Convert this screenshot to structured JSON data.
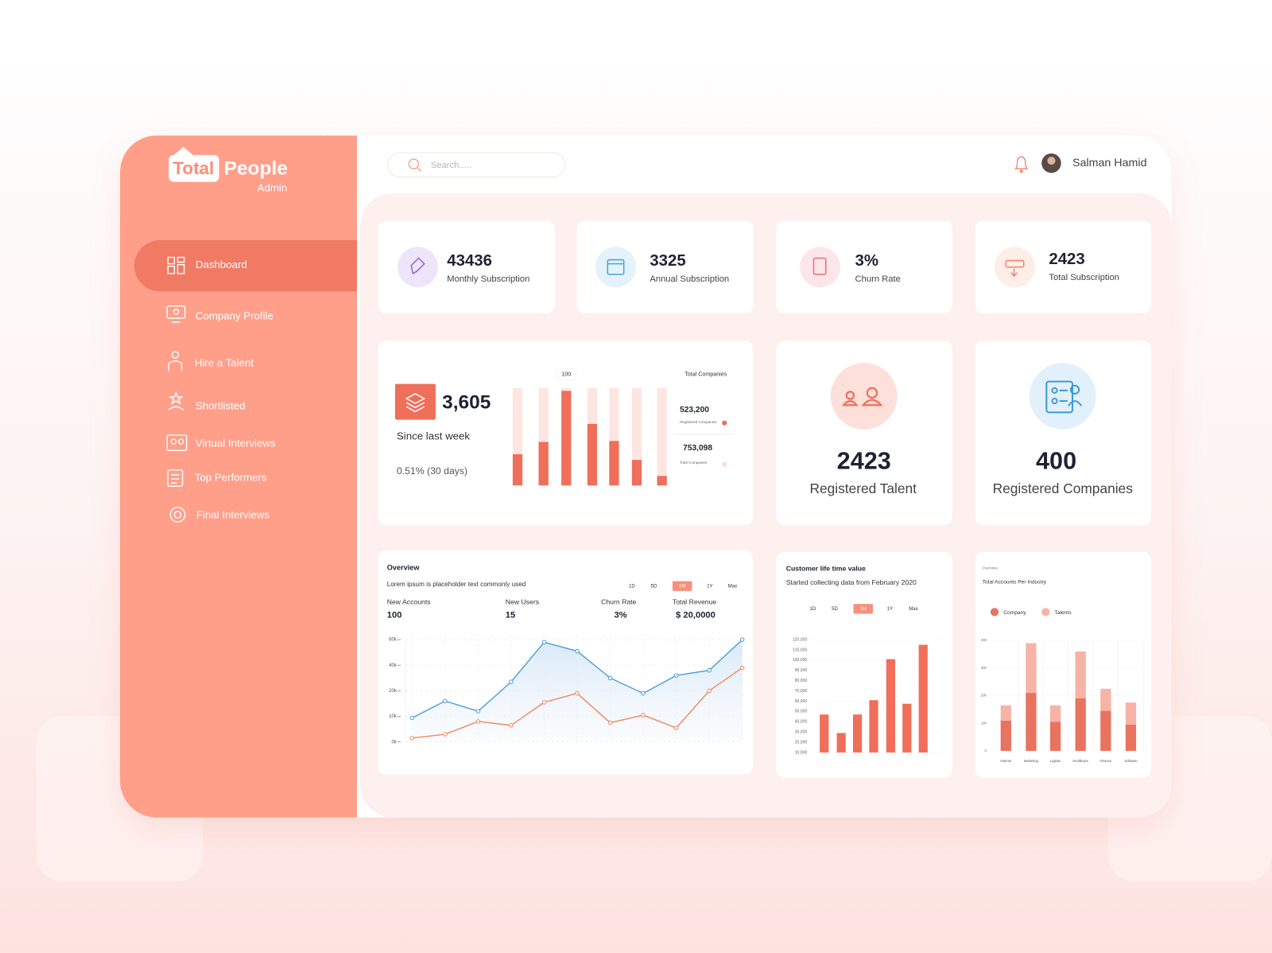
{
  "sidebar": {
    "brand": {
      "word1": "Total",
      "word2": "People",
      "tagline": "Admin"
    },
    "nav": [
      "Dashboard",
      "Company Profile",
      "Hire a Talent",
      "Shortlisted",
      "Virtual Interviews",
      "Top Performers",
      "Final Interviews"
    ]
  },
  "header": {
    "search_placeholder": "Search.....",
    "user_name": "Salman Hamid"
  },
  "stats": [
    {
      "value": "43436",
      "label": "Monthly Subscription"
    },
    {
      "value": "3325",
      "label": "Annual Subscription"
    },
    {
      "value": "3%",
      "label": "Churn Rate"
    },
    {
      "value": "2423",
      "label": "Total Subscription"
    }
  ],
  "weekly_card": {
    "value": "3,605",
    "caption": "Since last week",
    "change": "0.51% (30 days)",
    "legend": {
      "title": "Total Companies",
      "items": [
        {
          "value": "523,200",
          "label": "Registered Companies",
          "color": "#ef6f5a"
        },
        {
          "value": "753,098",
          "label": "Total Companies",
          "color": "#fddcd5"
        }
      ]
    }
  },
  "counters": [
    {
      "value": "2423",
      "label": "Registered Talent"
    },
    {
      "value": "400",
      "label": "Registered Companies"
    }
  ],
  "chart_data": [
    {
      "type": "bar",
      "categories": [
        null,
        null,
        null,
        null,
        null,
        null,
        null
      ],
      "values": [
        33,
        46,
        100,
        65,
        47,
        27,
        10
      ],
      "ylim": [
        0,
        103
      ],
      "color": "#ef6f5a",
      "track_color": "#fde6e1"
    },
    {
      "type": "line",
      "title": "Overview",
      "subtitle": "Lorem ipsum is placeholder text commonly used",
      "ranges": [
        "1D",
        "5D",
        "1M",
        "1Y",
        "Max"
      ],
      "active_range": "1M",
      "metrics": [
        {
          "label": "New Accounts",
          "value": "100"
        },
        {
          "label": "New Users",
          "value": "15"
        },
        {
          "label": "Churn Rate",
          "value": "3%"
        },
        {
          "label": "Total Revenue",
          "value": "$ 20,0000"
        }
      ],
      "categories": [
        null,
        null,
        null,
        null,
        null,
        null,
        null,
        null,
        null,
        null,
        null
      ],
      "series": [
        {
          "color": "#4a9fd8",
          "values": [
            9400,
            16000,
            12000,
            27000,
            58000,
            51000,
            30000,
            19000,
            32000,
            36000,
            60000
          ]
        },
        {
          "color": "#f2875f",
          "values": [
            1500,
            3000,
            8000,
            6500,
            15500,
            19000,
            7500,
            10500,
            5500,
            20000,
            38000
          ]
        }
      ],
      "ylim": [
        0,
        60000
      ],
      "yticks": [
        {
          "value": 0,
          "label": "0k"
        },
        {
          "value": 10000,
          "label": "10k"
        },
        {
          "value": 20000,
          "label": "20k"
        },
        {
          "value": 40000,
          "label": "40k"
        },
        {
          "value": 60000,
          "label": "60k"
        }
      ],
      "grid": true,
      "area": true
    },
    {
      "type": "bar",
      "title": "Customer life time value",
      "subtitle": "Started collecting data from February 2020",
      "ranges": [
        "1D",
        "5D",
        "1M",
        "1Y",
        "Max"
      ],
      "active_range": "1M",
      "categories": [
        null,
        null,
        null,
        null,
        null,
        null,
        null
      ],
      "values": [
        47000,
        29000,
        47000,
        61000,
        101000,
        57500,
        115000
      ],
      "color": "#ef6f5a",
      "ylim": [
        10000,
        120000
      ],
      "yticks": [
        {
          "value": 10000,
          "label": "10,000"
        },
        {
          "value": 20000,
          "label": "20,000"
        },
        {
          "value": 30000,
          "label": "30,000"
        },
        {
          "value": 40000,
          "label": "40,000"
        },
        {
          "value": 50000,
          "label": "50,000"
        },
        {
          "value": 60000,
          "label": "60,000"
        },
        {
          "value": 70000,
          "label": "70,000"
        },
        {
          "value": 80000,
          "label": "80,000"
        },
        {
          "value": 90000,
          "label": "90,000"
        },
        {
          "value": 100000,
          "label": "100,000"
        },
        {
          "value": 110000,
          "label": "110,000"
        },
        {
          "value": 120000,
          "label": "120,000"
        }
      ]
    },
    {
      "type": "bar",
      "stacked": true,
      "kicker": "Overview",
      "title": "Total Accounts Per Industry",
      "categories": [
        "Internet",
        "Marketing",
        "Logistic",
        "Healthcare",
        "Finance",
        "Software"
      ],
      "series": [
        {
          "name": "Company",
          "color": "#e8735f",
          "values": [
            110,
            210,
            105,
            190,
            145,
            95
          ]
        },
        {
          "name": "Talents",
          "color": "#f7b3a6",
          "values": [
            55,
            180,
            60,
            170,
            80,
            80
          ]
        }
      ],
      "ylim": [
        0,
        400
      ],
      "yticks": [
        0,
        100,
        200,
        300,
        400
      ],
      "grid": true
    }
  ]
}
